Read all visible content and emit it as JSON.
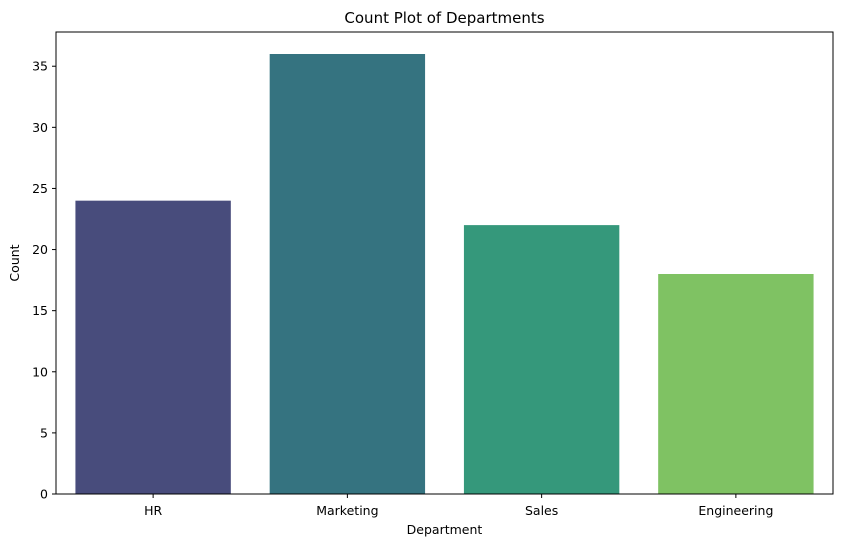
{
  "chart_data": {
    "type": "bar",
    "title": "Count Plot of Departments",
    "xlabel": "Department",
    "ylabel": "Count",
    "categories": [
      "HR",
      "Marketing",
      "Sales",
      "Engineering"
    ],
    "values": [
      24,
      36,
      22,
      18
    ],
    "colors": [
      "#484c7c",
      "#357380",
      "#35987b",
      "#7fc263"
    ],
    "ylim": [
      0,
      37.8
    ],
    "yticks": [
      "0",
      "5",
      "10",
      "15",
      "20",
      "25",
      "30",
      "35"
    ],
    "grid": false,
    "legend": false
  }
}
